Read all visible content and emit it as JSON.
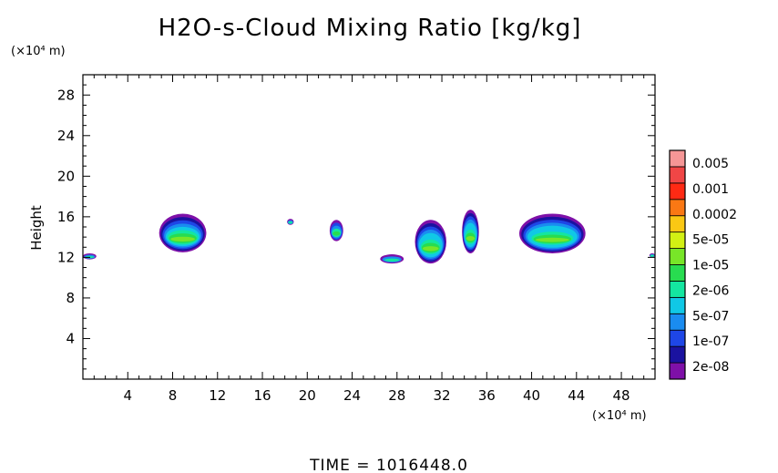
{
  "chart_data": {
    "type": "heatmap",
    "title": "H2O-s-Cloud Mixing Ratio [kg/kg]",
    "ylabel": "Height",
    "x_unit": "(×10⁴ m)",
    "y_unit": "(×10⁴ m)",
    "footer": "TIME = 1016448.0",
    "xlim": [
      0,
      51
    ],
    "ylim": [
      0,
      30
    ],
    "xticks": [
      4,
      8,
      12,
      16,
      20,
      24,
      28,
      32,
      36,
      40,
      44,
      48
    ],
    "yticks": [
      4,
      8,
      12,
      16,
      20,
      24,
      28
    ],
    "colorbar": {
      "labels": [
        "0.005",
        "0.001",
        "0.0002",
        "5e-05",
        "1e-05",
        "2e-06",
        "5e-07",
        "1e-07",
        "2e-08"
      ],
      "colors": [
        "#7e10a8",
        "#1a12a0",
        "#1e46e6",
        "#1a8cf0",
        "#10c8e6",
        "#14e6a0",
        "#28dc50",
        "#78e628",
        "#d2f014",
        "#fac814",
        "#fa7814",
        "#ff2a14",
        "#f04646",
        "#f59696"
      ]
    },
    "clouds": [
      {
        "name": "cloud-edge-left",
        "x_range": [
          0,
          1.2
        ],
        "z_range": [
          11.8,
          12.4
        ]
      },
      {
        "name": "cloud-8",
        "x_range": [
          6.8,
          11
        ],
        "z_range": [
          12.5,
          16.3
        ]
      },
      {
        "name": "cloud-18",
        "x_range": [
          18.2,
          18.8
        ],
        "z_range": [
          15.2,
          15.8
        ]
      },
      {
        "name": "cloud-23",
        "x_range": [
          22,
          23.2
        ],
        "z_range": [
          13.6,
          15.7
        ]
      },
      {
        "name": "cloud-27",
        "x_range": [
          26.5,
          28.6
        ],
        "z_range": [
          11.4,
          12.3
        ]
      },
      {
        "name": "cloud-30",
        "x_range": [
          29.6,
          32.4
        ],
        "z_range": [
          11.4,
          15.7
        ]
      },
      {
        "name": "cloud-35",
        "x_range": [
          33.8,
          35.3
        ],
        "z_range": [
          12.4,
          16.7
        ]
      },
      {
        "name": "cloud-42",
        "x_range": [
          38.9,
          44.8
        ],
        "z_range": [
          12.4,
          16.3
        ]
      },
      {
        "name": "cloud-edge-right",
        "x_range": [
          50.5,
          51
        ],
        "z_range": [
          12,
          12.4
        ]
      }
    ]
  }
}
